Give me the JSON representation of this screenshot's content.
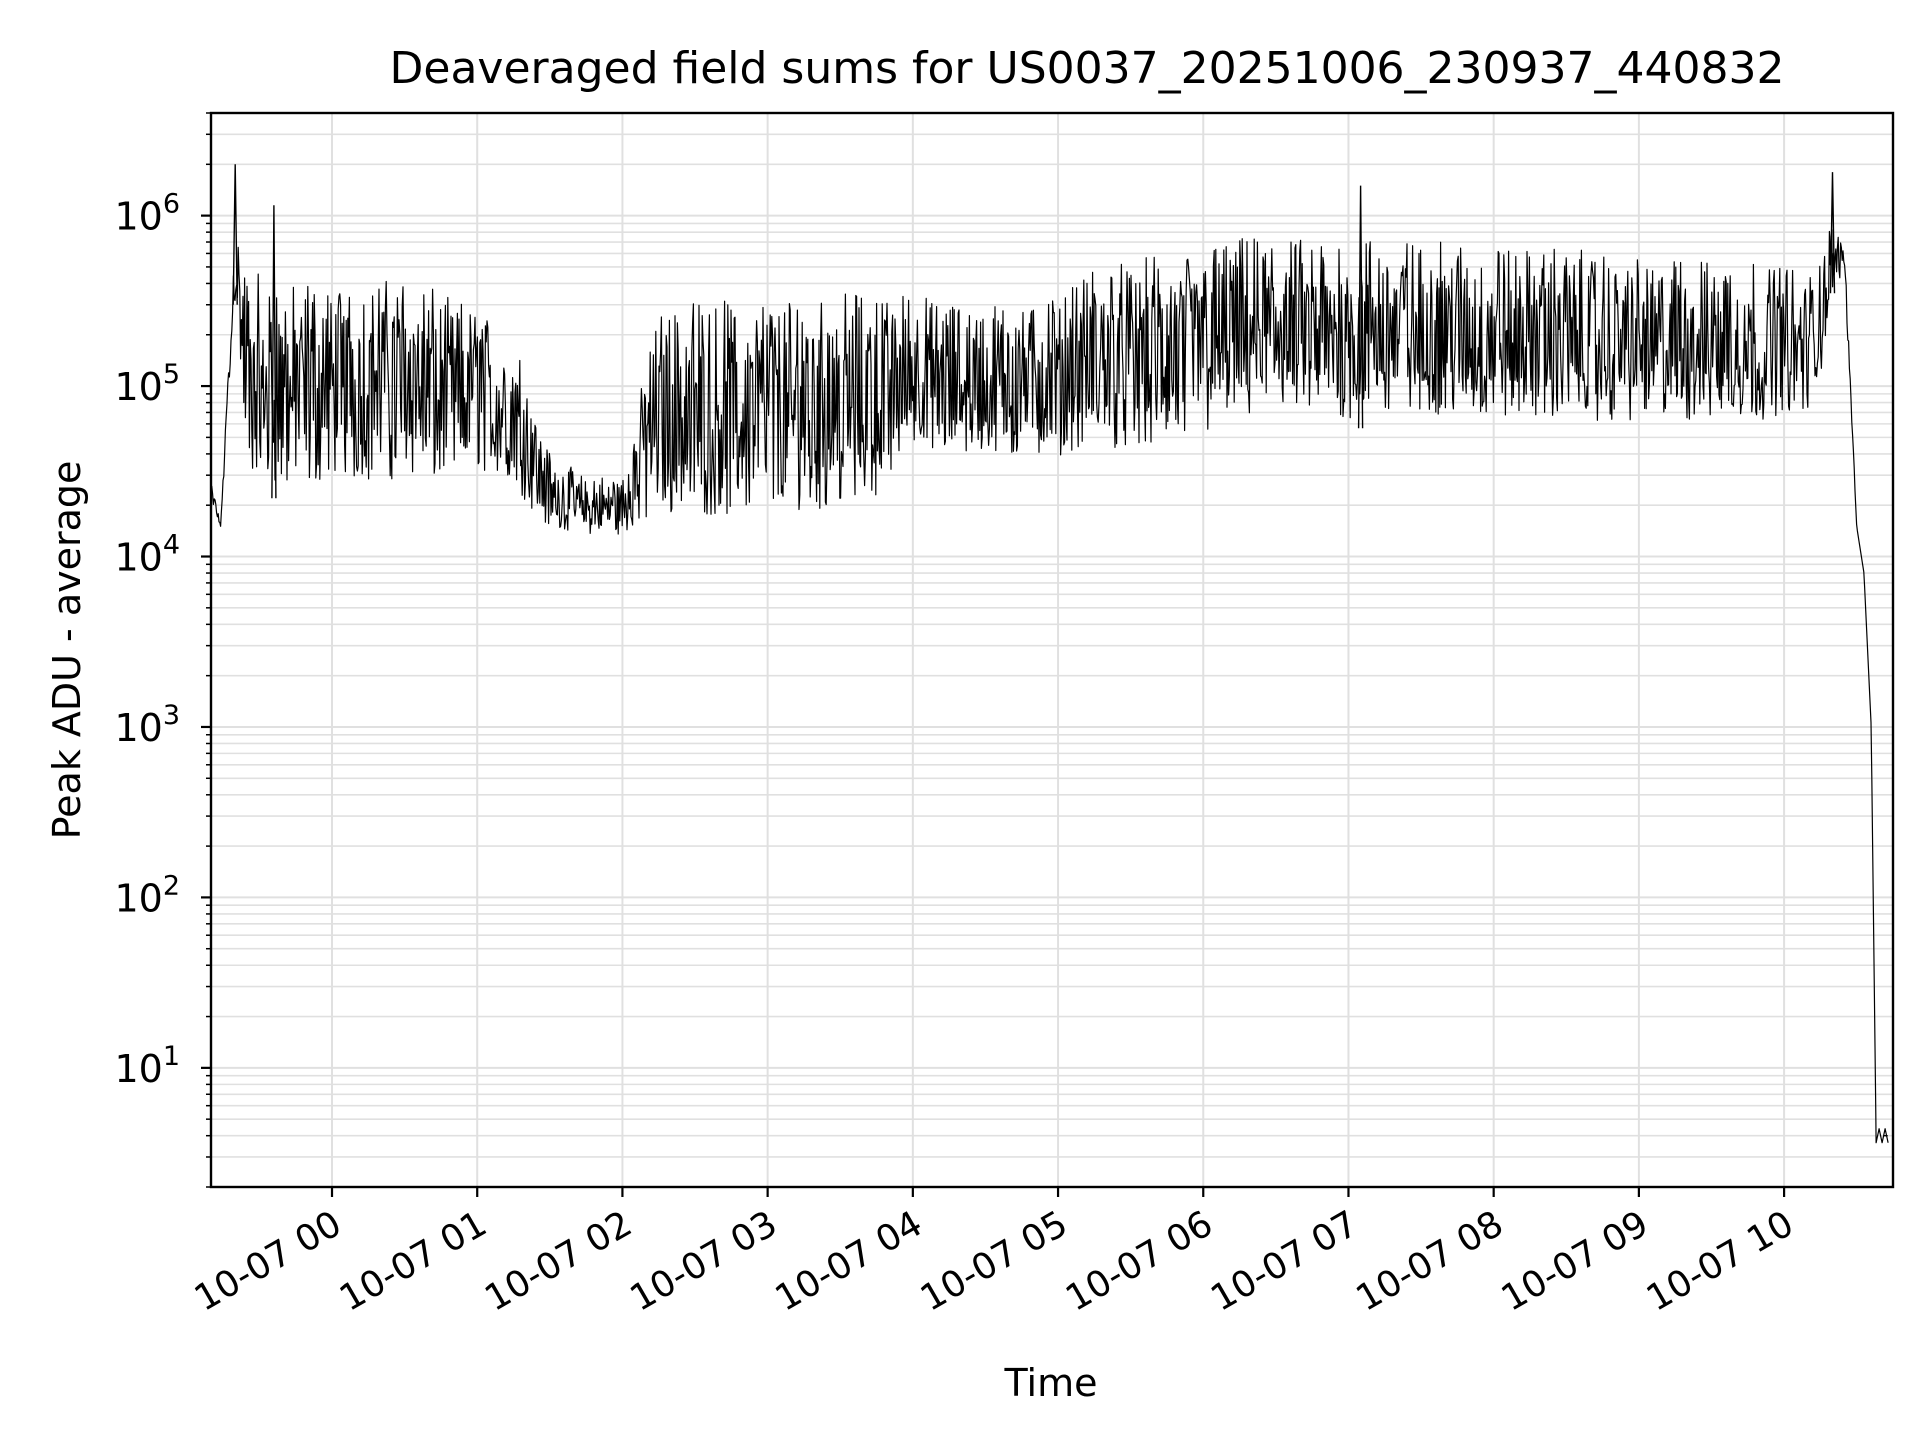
{
  "chart_data": {
    "type": "line",
    "title": "Deaveraged field sums for US0037_20251006_230937_440832",
    "xlabel": "Time",
    "ylabel": "Peak ADU - average",
    "x_scale": "time",
    "y_scale": "log",
    "xlim": [
      "2025-10-06 23:10",
      "2025-10-07 10:45"
    ],
    "ylim": [
      2,
      4000000
    ],
    "grid": true,
    "line_color": "#000000",
    "grid_color": "#e0e0e0",
    "x_ticks": [
      {
        "value": "2025-10-07 00:00",
        "label": "10-07 00"
      },
      {
        "value": "2025-10-07 01:00",
        "label": "10-07 01"
      },
      {
        "value": "2025-10-07 02:00",
        "label": "10-07 02"
      },
      {
        "value": "2025-10-07 03:00",
        "label": "10-07 03"
      },
      {
        "value": "2025-10-07 04:00",
        "label": "10-07 04"
      },
      {
        "value": "2025-10-07 05:00",
        "label": "10-07 05"
      },
      {
        "value": "2025-10-07 06:00",
        "label": "10-07 06"
      },
      {
        "value": "2025-10-07 07:00",
        "label": "10-07 07"
      },
      {
        "value": "2025-10-07 08:00",
        "label": "10-07 08"
      },
      {
        "value": "2025-10-07 09:00",
        "label": "10-07 09"
      },
      {
        "value": "2025-10-07 10:00",
        "label": "10-07 10"
      }
    ],
    "y_ticks": [
      {
        "value": 10,
        "label": "10",
        "exp": "1"
      },
      {
        "value": 100,
        "label": "10",
        "exp": "2"
      },
      {
        "value": 1000,
        "label": "10",
        "exp": "3"
      },
      {
        "value": 10000,
        "label": "10",
        "exp": "4"
      },
      {
        "value": 100000,
        "label": "10",
        "exp": "5"
      },
      {
        "value": 1000000,
        "label": "10",
        "exp": "6"
      }
    ],
    "series": [
      {
        "envelope": {
          "x": [
            "2025-10-06 23:10",
            "2025-10-06 23:14",
            "2025-10-06 23:20",
            "2025-10-06 23:25",
            "2025-10-06 23:30",
            "2025-10-06 23:45",
            "2025-10-07 00:00",
            "2025-10-07 00:15",
            "2025-10-07 00:30",
            "2025-10-07 00:45",
            "2025-10-07 01:00",
            "2025-10-07 01:15",
            "2025-10-07 01:30",
            "2025-10-07 01:45",
            "2025-10-07 02:00",
            "2025-10-07 02:15",
            "2025-10-07 02:30",
            "2025-10-07 02:45",
            "2025-10-07 03:00",
            "2025-10-07 03:15",
            "2025-10-07 03:30",
            "2025-10-07 03:45",
            "2025-10-07 04:00",
            "2025-10-07 04:15",
            "2025-10-07 04:30",
            "2025-10-07 04:45",
            "2025-10-07 05:00",
            "2025-10-07 05:15",
            "2025-10-07 05:30",
            "2025-10-07 05:45",
            "2025-10-07 06:00",
            "2025-10-07 06:15",
            "2025-10-07 06:30",
            "2025-10-07 06:45",
            "2025-10-07 07:00",
            "2025-10-07 07:15",
            "2025-10-07 07:30",
            "2025-10-07 07:45",
            "2025-10-07 08:00",
            "2025-10-07 08:15",
            "2025-10-07 08:30",
            "2025-10-07 08:45",
            "2025-10-07 09:00",
            "2025-10-07 09:15",
            "2025-10-07 09:30",
            "2025-10-07 09:45",
            "2025-10-07 10:00",
            "2025-10-07 10:10",
            "2025-10-07 10:15",
            "2025-10-07 10:20",
            "2025-10-07 10:25",
            "2025-10-07 10:30",
            "2025-10-07 10:33",
            "2025-10-07 10:36",
            "2025-10-07 10:38"
          ],
          "low": [
            20000,
            15000,
            300000,
            25000,
            22000,
            22000,
            25000,
            24000,
            25000,
            24000,
            30000,
            22000,
            14000,
            13000,
            13000,
            15000,
            15000,
            15000,
            16000,
            16000,
            17000,
            20000,
            40000,
            35000,
            35000,
            35000,
            35000,
            38000,
            38000,
            38000,
            45000,
            55000,
            60000,
            60000,
            55000,
            60000,
            60000,
            60000,
            55000,
            55000,
            60000,
            55000,
            55000,
            55000,
            55000,
            55000,
            60000,
            60000,
            100000,
            350000,
            450000,
            15000,
            8000,
            1000,
            4
          ],
          "high": [
            30000,
            15000,
            1000000,
            500000,
            450000,
            400000,
            400000,
            400000,
            450000,
            350000,
            300000,
            200000,
            40000,
            30000,
            30000,
            300000,
            320000,
            320000,
            320000,
            340000,
            350000,
            350000,
            350000,
            320000,
            300000,
            300000,
            320000,
            500000,
            550000,
            600000,
            650000,
            750000,
            750000,
            750000,
            750000,
            750000,
            700000,
            700000,
            680000,
            650000,
            650000,
            600000,
            550000,
            550000,
            550000,
            550000,
            550000,
            400000,
            800000,
            850000,
            700000,
            15000,
            8000,
            1000,
            4
          ]
        },
        "spikes": [
          {
            "x": "2025-10-06 23:20",
            "y": 2000000
          },
          {
            "x": "2025-10-06 23:36",
            "y": 1150000
          },
          {
            "x": "2025-10-07 07:05",
            "y": 1500000
          },
          {
            "x": "2025-10-07 10:20",
            "y": 1800000
          },
          {
            "x": "2025-10-07 10:42",
            "y": 4
          }
        ]
      }
    ]
  }
}
